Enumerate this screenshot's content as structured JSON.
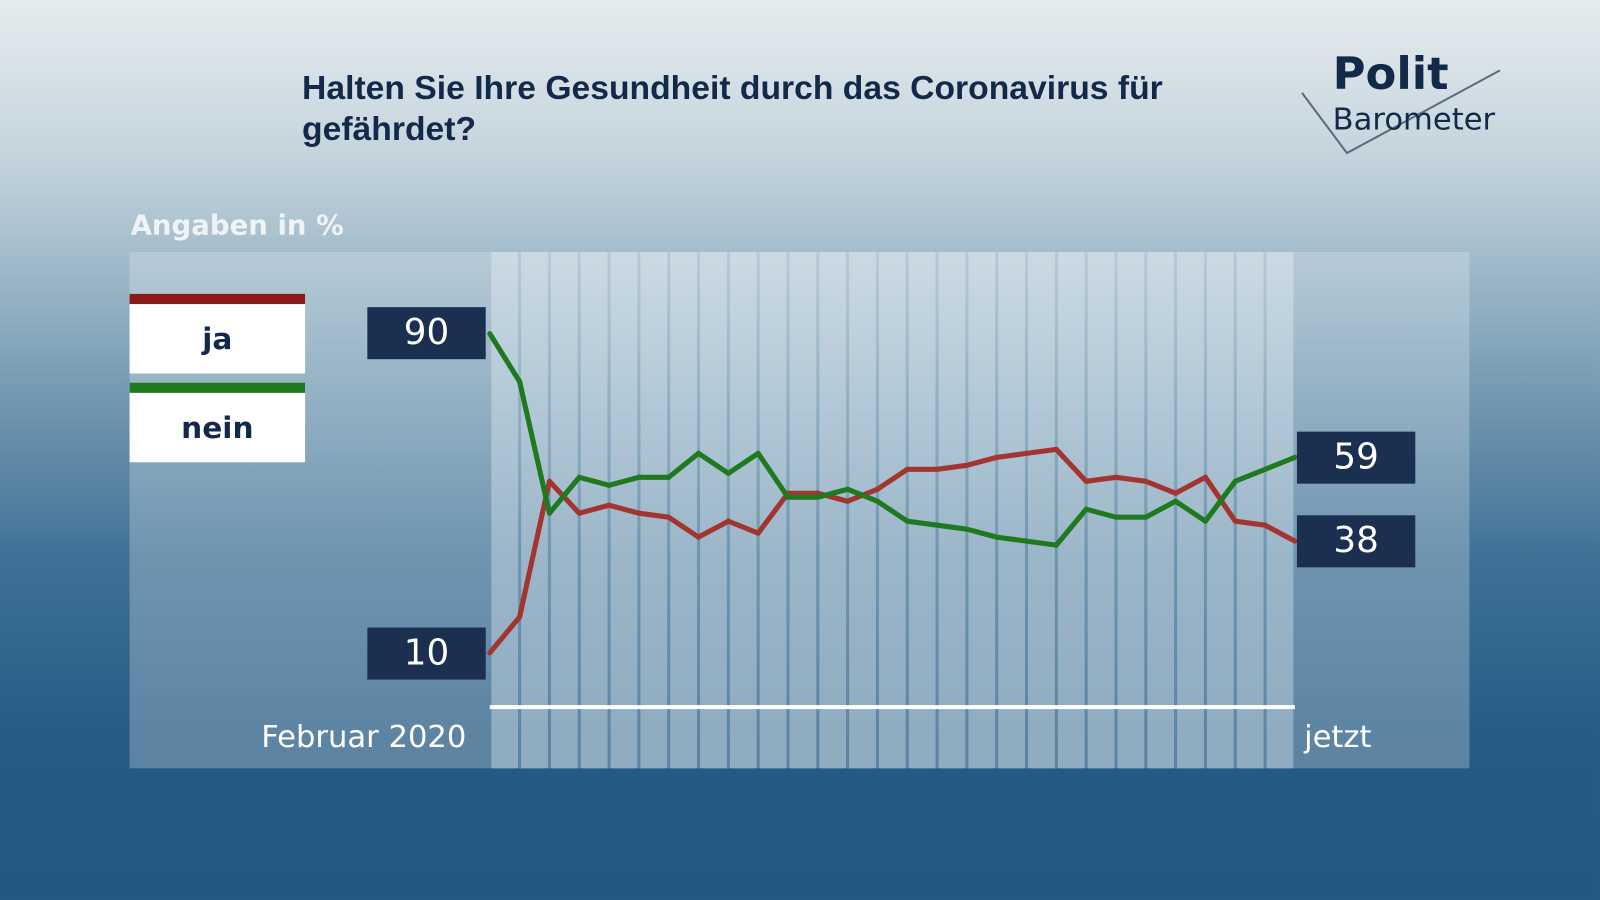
{
  "title": "Halten Sie Ihre Gesundheit durch das Coronavirus für gefährdet?",
  "logo": {
    "line1": "Polit",
    "line2": "Barometer"
  },
  "colors": {
    "ja": "#a33530",
    "nein": "#1f7a1f",
    "label_bg": "#1b3050"
  },
  "chart_data": {
    "type": "line",
    "title": "Halten Sie Ihre Gesundheit durch das Coronavirus für gefährdet?",
    "ylabel": "Angaben in %",
    "x_start_label": "Februar 2020",
    "x_end_label": "jetzt",
    "ylim": [
      0,
      100
    ],
    "series": [
      {
        "name": "ja",
        "values": [
          10,
          19,
          53,
          45,
          47,
          45,
          44,
          39,
          43,
          40,
          50,
          50,
          48,
          51,
          56,
          56,
          57,
          59,
          60,
          61,
          53,
          54,
          53,
          50,
          54,
          43,
          42,
          38
        ],
        "start_label": "10",
        "end_label": "38"
      },
      {
        "name": "nein",
        "values": [
          90,
          78,
          45,
          54,
          52,
          54,
          54,
          60,
          55,
          60,
          49,
          49,
          51,
          48,
          43,
          42,
          41,
          39,
          38,
          37,
          46,
          44,
          44,
          48,
          43,
          53,
          56,
          59
        ],
        "start_label": "90",
        "end_label": "59"
      }
    ]
  }
}
